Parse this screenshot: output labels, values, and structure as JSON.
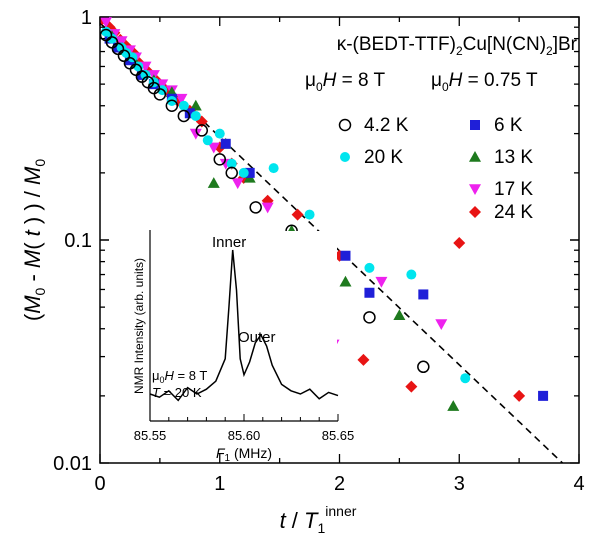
{
  "chart_data": {
    "type": "scatter",
    "title": "κ-(BEDT-TTF)2Cu[N(CN)2]Br",
    "xlabel": "t / T1 inner",
    "ylabel": "(M0 - M( t ) ) / M0",
    "xlim": [
      0,
      4
    ],
    "ylim": [
      0.01,
      1
    ],
    "yscale": "log",
    "x_ticks": [
      "0",
      "1",
      "2",
      "3",
      "4"
    ],
    "y_ticks": [
      "0.01",
      "0.1",
      "1"
    ],
    "legend_headers": {
      "left": "μ0H = 8 T",
      "right": "μ0H = 0.75 T"
    },
    "legend_placement": "top-right",
    "series": [
      {
        "name": "4.2 K",
        "field": "8 T",
        "marker": "open-circle",
        "color": "#000000",
        "x": [
          0.05,
          0.1,
          0.15,
          0.2,
          0.25,
          0.3,
          0.35,
          0.4,
          0.45,
          0.5,
          0.6,
          0.7,
          0.85,
          1.0,
          1.1,
          1.3,
          1.6,
          1.9,
          2.25,
          2.7
        ],
        "y": [
          0.83,
          0.77,
          0.72,
          0.67,
          0.62,
          0.58,
          0.54,
          0.51,
          0.48,
          0.45,
          0.4,
          0.36,
          0.31,
          0.23,
          0.2,
          0.14,
          0.11,
          0.074,
          0.045,
          0.027
        ]
      },
      {
        "name": "20 K",
        "field": "8 T",
        "marker": "filled-circle",
        "color": "#00e5ee",
        "x": [
          0.05,
          0.1,
          0.18,
          0.22,
          0.27,
          0.32,
          0.38,
          0.45,
          0.52,
          0.6,
          0.7,
          0.8,
          0.9,
          1.0,
          1.1,
          1.2,
          1.45,
          1.75,
          1.85,
          2.25,
          2.6,
          3.05
        ],
        "y": [
          0.86,
          0.8,
          0.73,
          0.69,
          0.66,
          0.6,
          0.55,
          0.51,
          0.47,
          0.42,
          0.4,
          0.36,
          0.28,
          0.3,
          0.22,
          0.2,
          0.21,
          0.13,
          0.035,
          0.075,
          0.07,
          0.024
        ]
      },
      {
        "name": "6 K",
        "field": "0.75 T",
        "marker": "filled-square",
        "color": "#1f1fd8",
        "x": [
          0.08,
          0.15,
          0.25,
          0.35,
          0.45,
          0.6,
          0.75,
          1.05,
          1.25,
          1.4,
          2.05,
          2.25,
          2.7,
          3.7
        ],
        "y": [
          0.8,
          0.73,
          0.64,
          0.55,
          0.5,
          0.43,
          0.37,
          0.27,
          0.2,
          0.1,
          0.085,
          0.058,
          0.057,
          0.02
        ]
      },
      {
        "name": "13 K",
        "field": "0.75 T",
        "marker": "filled-triangle-up",
        "color": "#1e7a1e",
        "x": [
          0.1,
          0.2,
          0.3,
          0.45,
          0.6,
          0.8,
          0.95,
          1.05,
          1.25,
          1.6,
          2.05,
          2.5,
          2.95
        ],
        "y": [
          0.82,
          0.71,
          0.62,
          0.52,
          0.46,
          0.4,
          0.18,
          0.27,
          0.19,
          0.11,
          0.065,
          0.046,
          0.018
        ]
      },
      {
        "name": "17 K",
        "field": "0.75 T",
        "marker": "filled-triangle-down",
        "color": "#ee22ee",
        "x": [
          0.05,
          0.12,
          0.18,
          0.25,
          0.3,
          0.38,
          0.45,
          0.52,
          0.6,
          0.68,
          0.8,
          0.95,
          1.05,
          1.15,
          1.4,
          1.75,
          1.95,
          2.35,
          2.85
        ],
        "y": [
          0.95,
          0.84,
          0.78,
          0.71,
          0.66,
          0.6,
          0.55,
          0.5,
          0.47,
          0.43,
          0.3,
          0.26,
          0.22,
          0.18,
          0.14,
          0.1,
          0.034,
          0.065,
          0.042
        ]
      },
      {
        "name": "24 K",
        "field": "0.75 T",
        "marker": "filled-diamond",
        "color": "#e81414",
        "x": [
          0.02,
          0.08,
          0.12,
          0.17,
          0.22,
          0.28,
          0.33,
          0.4,
          0.47,
          0.55,
          0.65,
          0.75,
          0.85,
          1.0,
          1.1,
          1.2,
          1.4,
          1.65,
          2.0,
          2.2,
          2.6,
          3.0,
          3.5
        ],
        "y": [
          0.98,
          0.9,
          0.85,
          0.79,
          0.74,
          0.69,
          0.62,
          0.57,
          0.52,
          0.47,
          0.42,
          0.38,
          0.34,
          0.26,
          0.22,
          0.19,
          0.15,
          0.13,
          0.085,
          0.029,
          0.022,
          0.097,
          0.02
        ]
      }
    ],
    "fit_line": {
      "style": "dashed",
      "x": [
        0,
        4
      ],
      "y": [
        0.94,
        0.0085
      ]
    },
    "inset": {
      "type": "line",
      "xlabel": "F1 (MHz)",
      "ylabel": "NMR Intensity  (arb. units)",
      "xlim": [
        85.55,
        85.65
      ],
      "x_ticks": [
        "85.55",
        "85.60",
        "85.65"
      ],
      "annotations": [
        "Inner",
        "Outer"
      ],
      "conditions": [
        "μ0H = 8 T",
        "T = 20 K"
      ],
      "x": [
        85.55,
        85.555,
        85.56,
        85.565,
        85.57,
        85.575,
        85.58,
        85.585,
        85.59,
        85.592,
        85.594,
        85.596,
        85.598,
        85.6,
        85.603,
        85.606,
        85.609,
        85.612,
        85.615,
        85.62,
        85.625,
        85.63,
        85.635,
        85.64,
        85.645,
        85.65
      ],
      "y": [
        0.1,
        0.08,
        0.12,
        0.06,
        0.14,
        0.1,
        0.13,
        0.18,
        0.32,
        0.65,
        1.0,
        0.75,
        0.32,
        0.22,
        0.3,
        0.42,
        0.47,
        0.4,
        0.28,
        0.16,
        0.12,
        0.1,
        0.13,
        0.07,
        0.11,
        0.09
      ]
    }
  }
}
